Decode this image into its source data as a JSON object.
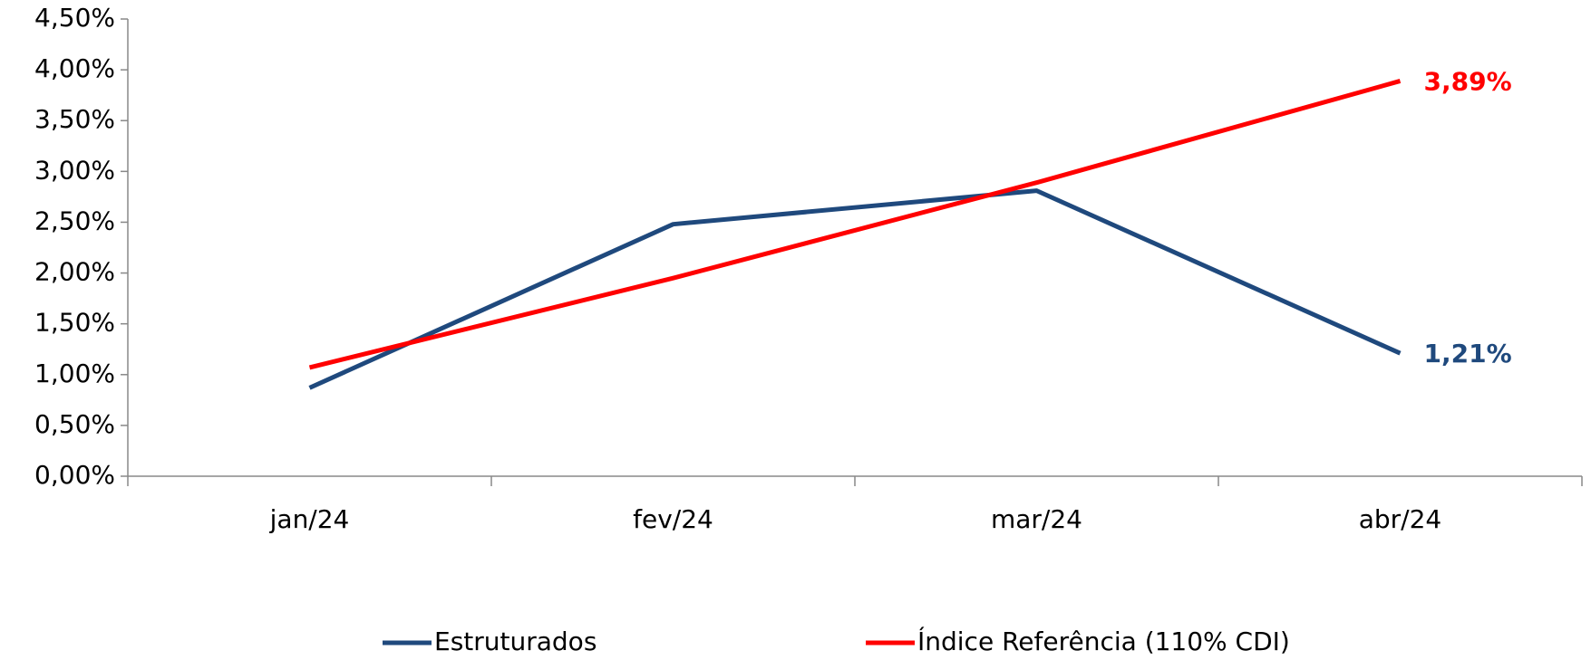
{
  "chart_data": {
    "type": "line",
    "categories": [
      "jan/24",
      "fev/24",
      "mar/24",
      "abr/24"
    ],
    "series": [
      {
        "name": "Estruturados",
        "color": "#1f497d",
        "values": [
          0.87,
          2.48,
          2.81,
          1.21
        ],
        "value_labels": [
          null,
          null,
          null,
          "1,21%"
        ]
      },
      {
        "name": "Índice Referência (110% CDI)",
        "color": "#ff0000",
        "values": [
          1.07,
          1.95,
          2.89,
          3.89
        ],
        "value_labels": [
          null,
          null,
          null,
          "3,89%"
        ]
      }
    ],
    "ylim": [
      0,
      4.5
    ],
    "yticks": [
      {
        "value": 0,
        "label": "0,00%"
      },
      {
        "value": 0.5,
        "label": "0,50%"
      },
      {
        "value": 1,
        "label": "1,00%"
      },
      {
        "value": 1.5,
        "label": "1,50%"
      },
      {
        "value": 2,
        "label": "2,00%"
      },
      {
        "value": 2.5,
        "label": "2,50%"
      },
      {
        "value": 3,
        "label": "3,00%"
      },
      {
        "value": 3.5,
        "label": "3,50%"
      },
      {
        "value": 4,
        "label": "4,00%"
      },
      {
        "value": 4.5,
        "label": "4,50%"
      }
    ],
    "grid": false,
    "legend": "bottom"
  }
}
